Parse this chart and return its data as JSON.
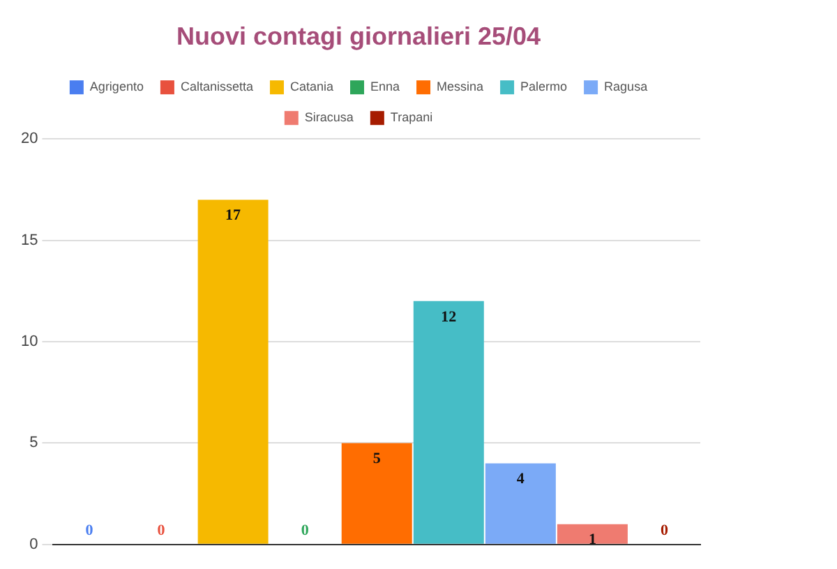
{
  "chart_data": {
    "type": "bar",
    "title": "Nuovi contagi giornalieri 25/04",
    "categories": [
      null,
      null,
      null,
      null,
      null,
      null,
      null,
      null,
      null
    ],
    "series": [
      {
        "name": "Agrigento",
        "color": "#4a7ef0",
        "values": [
          0,
          null,
          null,
          null,
          null,
          null,
          null,
          null,
          null
        ]
      },
      {
        "name": "Caltanissetta",
        "color": "#e8513e",
        "values": [
          null,
          0,
          null,
          null,
          null,
          null,
          null,
          null,
          null
        ]
      },
      {
        "name": "Catania",
        "color": "#f6b900",
        "values": [
          null,
          null,
          17,
          null,
          null,
          null,
          null,
          null,
          null
        ]
      },
      {
        "name": "Enna",
        "color": "#2ea65a",
        "values": [
          null,
          null,
          null,
          0,
          null,
          null,
          null,
          null,
          null
        ]
      },
      {
        "name": "Messina",
        "color": "#ff6d01",
        "values": [
          null,
          null,
          null,
          null,
          5,
          null,
          null,
          null,
          null
        ]
      },
      {
        "name": "Palermo",
        "color": "#46bdc6",
        "values": [
          null,
          null,
          null,
          null,
          null,
          12,
          null,
          null,
          null
        ]
      },
      {
        "name": "Ragusa",
        "color": "#7baaf7",
        "values": [
          null,
          null,
          null,
          null,
          null,
          null,
          4,
          null,
          null
        ]
      },
      {
        "name": "Siracusa",
        "color": "#ef7b70",
        "values": [
          null,
          null,
          null,
          null,
          null,
          null,
          null,
          1,
          null
        ]
      },
      {
        "name": "Trapani",
        "color": "#a61c00",
        "values": [
          null,
          null,
          null,
          null,
          null,
          null,
          null,
          null,
          0
        ]
      }
    ],
    "ylim": [
      0,
      20
    ],
    "yticks": [
      0,
      5,
      10,
      15,
      20
    ],
    "grid": "y",
    "legend": "top",
    "data_labels": true
  }
}
